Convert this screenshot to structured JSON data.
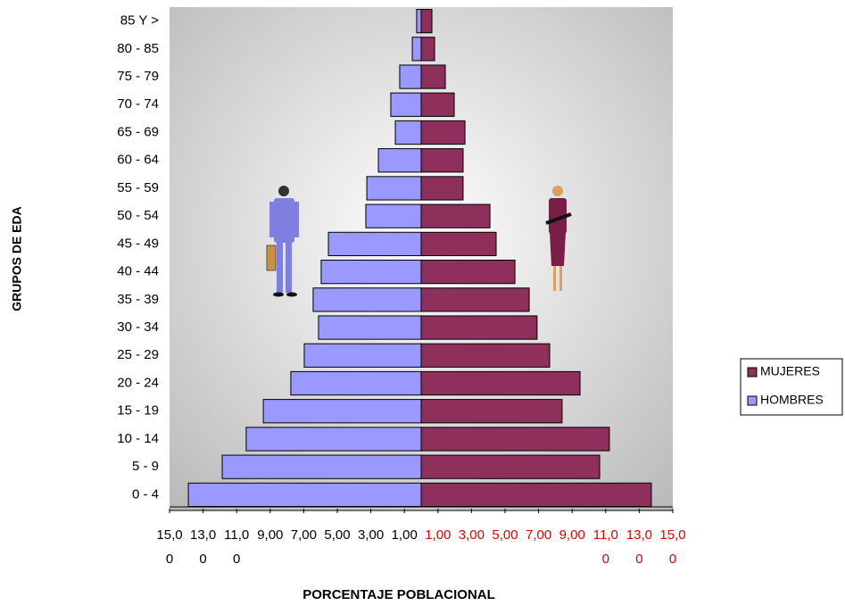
{
  "chart_data": {
    "type": "pyramid",
    "x_label": "PORCENTAJE POBLACIONAL",
    "y_label": "GRUPOS DE EDA",
    "categories": [
      "0 - 4",
      "5 - 9",
      "10 - 14",
      "15 - 19",
      "20 - 24",
      "25 - 29",
      "30 - 34",
      "35 - 39",
      "40 - 44",
      "45 - 49",
      "50 - 54",
      "55 - 59",
      "60 - 64",
      "65 - 69",
      "70 - 74",
      "75 - 79",
      "80 - 85",
      "85 Y >"
    ],
    "series": [
      {
        "name": "MUJERES",
        "color": "#8e2f5c",
        "values": [
          13.72,
          10.64,
          11.22,
          8.4,
          9.47,
          7.66,
          6.91,
          6.44,
          5.59,
          4.47,
          4.1,
          2.5,
          2.5,
          2.61,
          1.97,
          1.44,
          0.8,
          0.64
        ]
      },
      {
        "name": "HOMBRES",
        "color": "#9999ff",
        "values": [
          13.88,
          11.86,
          10.43,
          9.41,
          7.77,
          6.97,
          6.12,
          6.44,
          5.96,
          5.53,
          3.3,
          3.24,
          2.55,
          1.54,
          1.81,
          1.28,
          0.53,
          0.27
        ]
      }
    ],
    "xlim": [
      -15,
      15
    ],
    "xticks": [
      {
        "value": -15,
        "label": "15,00"
      },
      {
        "value": -13,
        "label": "13,00"
      },
      {
        "value": -11,
        "label": "11,00"
      },
      {
        "value": -9,
        "label": "9,00"
      },
      {
        "value": -7,
        "label": "7,00"
      },
      {
        "value": -5,
        "label": "5,00"
      },
      {
        "value": -3,
        "label": "3,00"
      },
      {
        "value": -1,
        "label": "1,00"
      },
      {
        "value": 1,
        "label": "1,00"
      },
      {
        "value": 3,
        "label": "3,00"
      },
      {
        "value": 5,
        "label": "5,00"
      },
      {
        "value": 7,
        "label": "7,00"
      },
      {
        "value": 9,
        "label": "9,00"
      },
      {
        "value": 11,
        "label": "11,00"
      },
      {
        "value": 13,
        "label": "13,00"
      },
      {
        "value": 15,
        "label": "15,00"
      }
    ]
  }
}
